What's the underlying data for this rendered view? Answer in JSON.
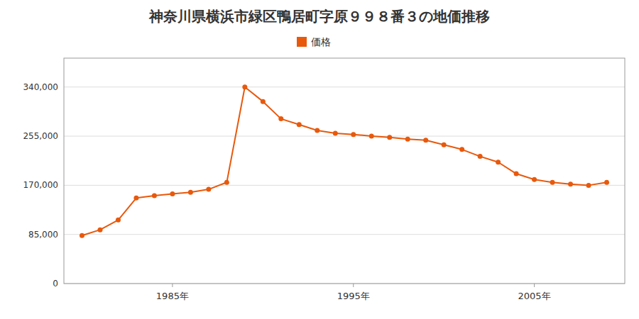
{
  "chart_data": {
    "type": "line",
    "title": "神奈川県横浜市緑区鴨居町字原９９８番３の地価推移",
    "x": [
      1980,
      1981,
      1982,
      1983,
      1984,
      1985,
      1986,
      1987,
      1988,
      1989,
      1990,
      1991,
      1992,
      1993,
      1994,
      1995,
      1996,
      1997,
      1998,
      1999,
      2000,
      2001,
      2002,
      2003,
      2004,
      2005,
      2006,
      2007,
      2008,
      2009
    ],
    "series": [
      {
        "name": "価格",
        "color": "#e8590c",
        "marker": "circle",
        "line_style": "solid",
        "values": [
          83000,
          93000,
          110000,
          148000,
          152000,
          155000,
          158000,
          163000,
          175000,
          340000,
          315000,
          285000,
          275000,
          265000,
          260000,
          258000,
          255000,
          253000,
          250000,
          248000,
          240000,
          232000,
          220000,
          210000,
          190000,
          180000,
          175000,
          172000,
          170000,
          175000
        ]
      }
    ],
    "xlim": [
      1979,
      2010
    ],
    "xticks": [
      {
        "value": 1985,
        "label": "1985年"
      },
      {
        "value": 1995,
        "label": "1995年"
      },
      {
        "value": 2005,
        "label": "2005年"
      }
    ],
    "ylim": [
      0,
      390000
    ],
    "yticks": [
      0,
      {
        "value": 85000,
        "label": "85,000"
      },
      {
        "value": 170000,
        "label": "170,000"
      },
      {
        "value": 255000,
        "label": "255,000"
      },
      {
        "value": 340000,
        "label": "340,000"
      }
    ],
    "grid": true,
    "legend": "top"
  }
}
